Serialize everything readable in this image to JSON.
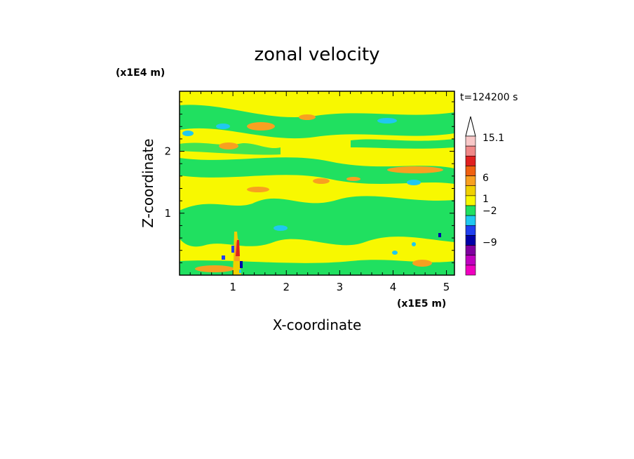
{
  "chart_data": {
    "type": "heatmap",
    "title": "zonal velocity",
    "xlabel": "X-coordinate",
    "ylabel": "Z-coordinate",
    "x_unit": "(x1E5 m)",
    "y_unit": "(x1E4 m)",
    "time_label": "t=124200 s",
    "xlim": [
      0,
      5.15
    ],
    "ylim": [
      0,
      2.97
    ],
    "x_ticks": [
      1,
      2,
      3,
      4,
      5
    ],
    "y_ticks": [
      1,
      2
    ],
    "colorbar": {
      "labels": [
        "15.1",
        "6",
        "1",
        "−2",
        "−9"
      ],
      "colors_top_to_bottom": [
        "#f8c8c8",
        "#f08888",
        "#e02020",
        "#f06010",
        "#f8a020",
        "#f0d000",
        "#f8f800",
        "#20e060",
        "#20c8f0",
        "#2040f0",
        "#0000a8",
        "#8000a0",
        "#c000c0",
        "#f000c0"
      ]
    }
  }
}
